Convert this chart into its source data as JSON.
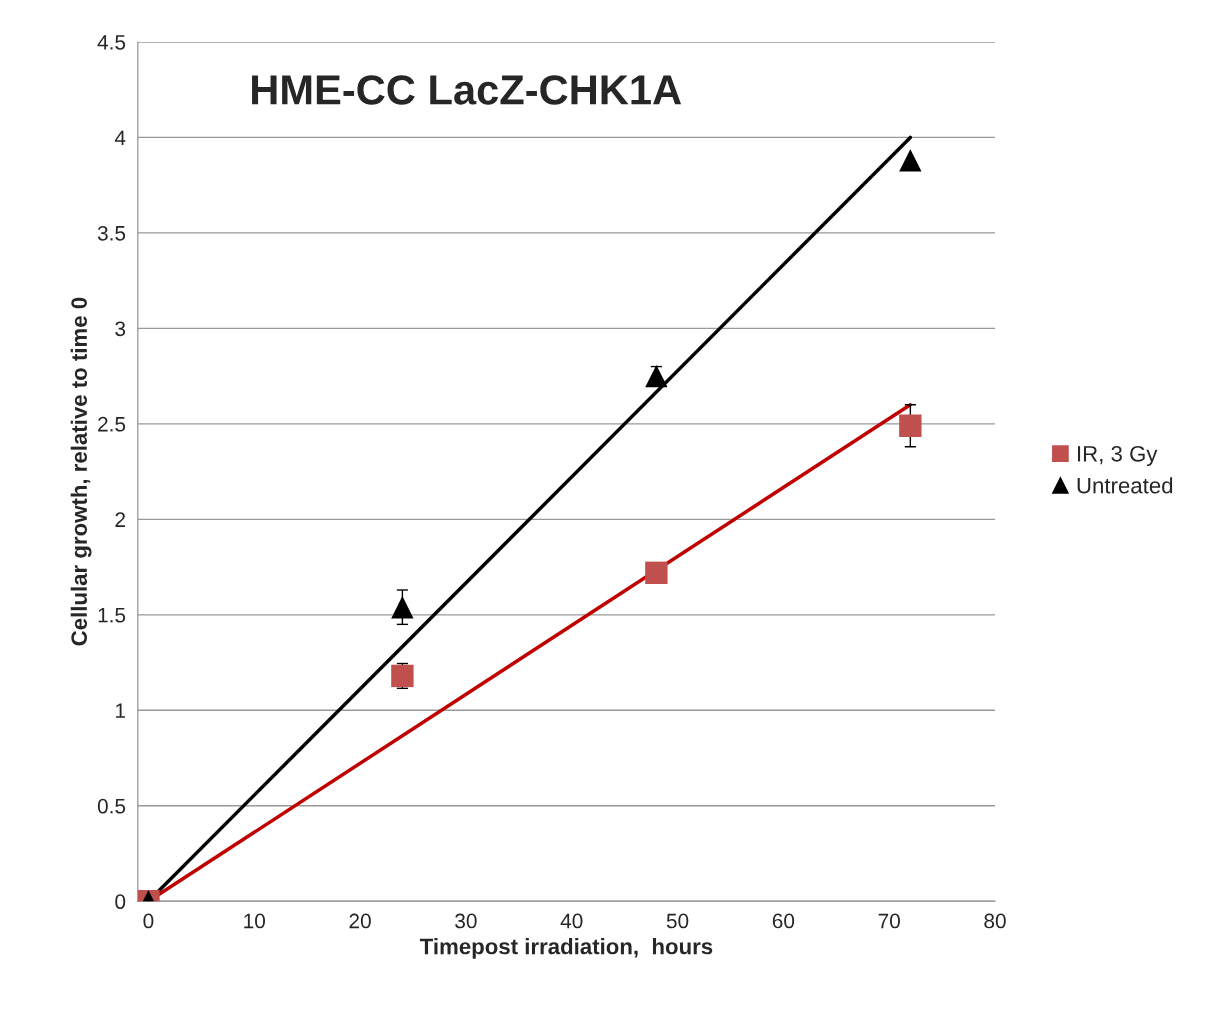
{
  "chart_data": {
    "type": "scatter",
    "title": "HME-CC LacZ-CHK1A",
    "xlabel": "Timepost irradiation,  hours",
    "ylabel": "Cellular growth, relative to time 0",
    "xlim": [
      -1,
      80
    ],
    "xticks": [
      0,
      10,
      20,
      30,
      40,
      50,
      60,
      70,
      80
    ],
    "ylim": [
      0,
      4.5
    ],
    "yticks": [
      0,
      0.5,
      1,
      1.5,
      2,
      2.5,
      3,
      3.5,
      4,
      4.5
    ],
    "grid": "y",
    "legend": "right",
    "series": [
      {
        "name": "IR, 3 Gy",
        "marker": "square",
        "color": "#c0504d",
        "x": [
          0,
          24,
          48,
          72
        ],
        "values": [
          0,
          1.18,
          1.72,
          2.49
        ],
        "errors": [
          null,
          0.065,
          null,
          0.11
        ]
      },
      {
        "name": "Untreated",
        "marker": "triangle",
        "color": "#000000",
        "x": [
          0,
          24,
          48,
          72
        ],
        "values": [
          0,
          1.54,
          2.75,
          3.88
        ],
        "errors": [
          null,
          0.09,
          0.05,
          null
        ]
      },
      {
        "type": "line",
        "marker": "none",
        "color": "#000000",
        "x": [
          0,
          72
        ],
        "values": [
          0,
          4.0
        ]
      },
      {
        "type": "line",
        "marker": "none",
        "color": "#c00000",
        "x": [
          0,
          72
        ],
        "values": [
          0,
          2.6
        ]
      }
    ]
  }
}
